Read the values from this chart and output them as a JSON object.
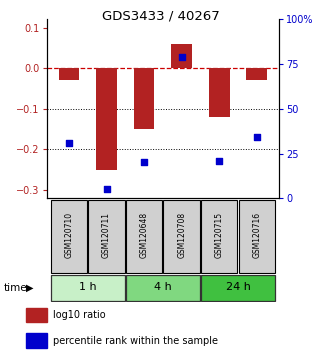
{
  "title": "GDS3433 / 40267",
  "samples": [
    "GSM120710",
    "GSM120711",
    "GSM120648",
    "GSM120708",
    "GSM120715",
    "GSM120716"
  ],
  "log10_ratio": [
    -0.03,
    -0.25,
    -0.15,
    0.06,
    -0.12,
    -0.03
  ],
  "percentile_rank": [
    31,
    5,
    20,
    79,
    21,
    34
  ],
  "time_groups": [
    {
      "label": "1 h",
      "samples": [
        0,
        1
      ],
      "color": "#c8f0c8"
    },
    {
      "label": "4 h",
      "samples": [
        2,
        3
      ],
      "color": "#80d880"
    },
    {
      "label": "24 h",
      "samples": [
        4,
        5
      ],
      "color": "#40c040"
    }
  ],
  "bar_color": "#b22222",
  "dot_color": "#0000cc",
  "zero_line_color": "#cc0000",
  "ylim_left": [
    -0.32,
    0.12
  ],
  "ylim_right": [
    0,
    100
  ],
  "yticks_left": [
    0.1,
    0,
    -0.1,
    -0.2,
    -0.3
  ],
  "yticks_right": [
    100,
    75,
    50,
    25,
    0
  ],
  "background_color": "#ffffff",
  "label_log10": "log10 ratio",
  "label_pct": "percentile rank within the sample",
  "sample_box_color": "#d0d0d0"
}
